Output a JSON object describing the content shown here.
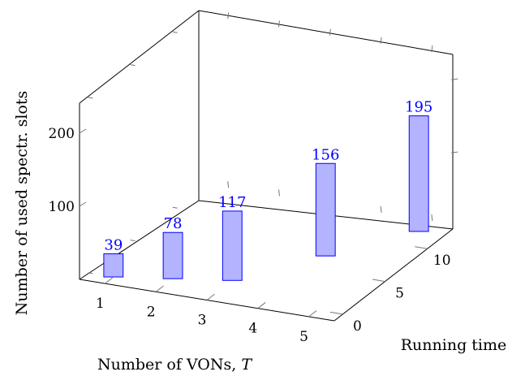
{
  "chart_data": {
    "type": "bar",
    "xlabel_prefix": "Number of VONs, ",
    "xlabel_var": "T",
    "ylabel": "Running time",
    "zlabel": "Number of used spectr. slots",
    "x_ticks": [
      "1",
      "2",
      "3",
      "4",
      "5"
    ],
    "y_ticks": [
      "0",
      "5",
      "10"
    ],
    "z_ticks": [
      "100",
      "200"
    ],
    "zlim": [
      0,
      240
    ],
    "bar_color": "#b3b3ff",
    "bar_edge_color": "#0000ff",
    "label_color": "#0000ff",
    "bars": [
      {
        "x": 1,
        "y": 0,
        "value": 39,
        "label": "39"
      },
      {
        "x": 2,
        "y": 1,
        "value": 78,
        "label": "78"
      },
      {
        "x": 3,
        "y": 2,
        "value": 117,
        "label": "117"
      },
      {
        "x": 4,
        "y": 7,
        "value": 156,
        "label": "156"
      },
      {
        "x": 5,
        "y": 12,
        "value": 195,
        "label": "195"
      }
    ]
  }
}
